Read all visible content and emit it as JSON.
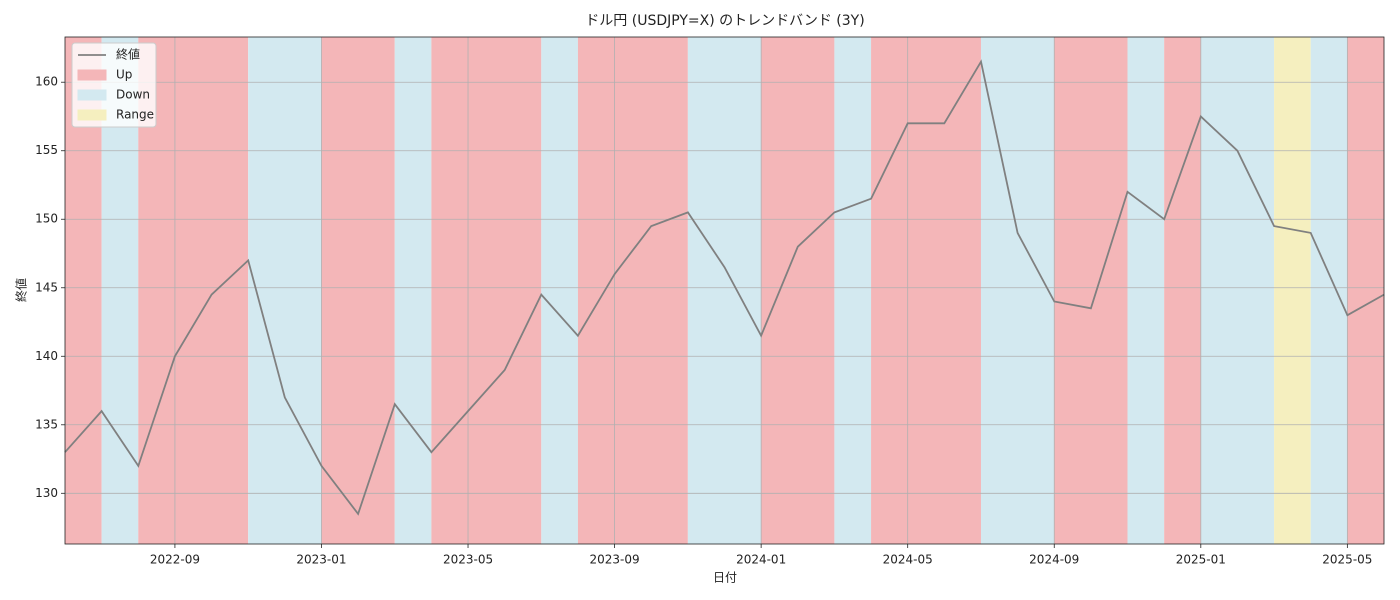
{
  "chart_data": {
    "type": "line",
    "title": "ドル円 (USDJPY=X) のトレンドバンド (3Y)",
    "x_label": "日付",
    "y_label": "終値",
    "x": [
      "2022-06",
      "2022-07",
      "2022-08",
      "2022-09",
      "2022-10",
      "2022-11",
      "2022-12",
      "2023-01",
      "2023-02",
      "2023-03",
      "2023-04",
      "2023-05",
      "2023-06",
      "2023-07",
      "2023-08",
      "2023-09",
      "2023-10",
      "2023-11",
      "2023-12",
      "2024-01",
      "2024-02",
      "2024-03",
      "2024-04",
      "2024-05",
      "2024-06",
      "2024-07",
      "2024-08",
      "2024-09",
      "2024-10",
      "2024-11",
      "2024-12",
      "2025-01",
      "2025-02",
      "2025-03",
      "2025-04",
      "2025-05",
      "2025-06"
    ],
    "series": [
      {
        "name": "終値",
        "color": "#808080",
        "values": [
          133,
          136,
          132,
          140,
          144.5,
          147,
          137,
          132,
          128.5,
          136.5,
          133,
          136,
          139,
          144.5,
          141.5,
          146,
          149.5,
          150.5,
          146.5,
          141.5,
          148,
          150.5,
          151.5,
          157,
          157,
          161.5,
          149,
          144,
          143.5,
          152,
          150,
          157.5,
          155,
          149.5,
          149,
          143,
          144.5
        ]
      }
    ],
    "band_types": [
      {
        "name": "Up",
        "color": "#f4b6b8"
      },
      {
        "name": "Down",
        "color": "#d3e9f0"
      },
      {
        "name": "Range",
        "color": "#f5efbf"
      }
    ],
    "bands": [
      {
        "start": "2022-06",
        "end": "2022-07",
        "trend": "Up"
      },
      {
        "start": "2022-07",
        "end": "2022-08",
        "trend": "Down"
      },
      {
        "start": "2022-08",
        "end": "2022-11",
        "trend": "Up"
      },
      {
        "start": "2022-11",
        "end": "2023-01",
        "trend": "Down"
      },
      {
        "start": "2023-01",
        "end": "2023-03",
        "trend": "Up"
      },
      {
        "start": "2023-03",
        "end": "2023-04",
        "trend": "Down"
      },
      {
        "start": "2023-04",
        "end": "2023-07",
        "trend": "Up"
      },
      {
        "start": "2023-07",
        "end": "2023-08",
        "trend": "Down"
      },
      {
        "start": "2023-08",
        "end": "2023-11",
        "trend": "Up"
      },
      {
        "start": "2023-11",
        "end": "2024-01",
        "trend": "Down"
      },
      {
        "start": "2024-01",
        "end": "2024-03",
        "trend": "Up"
      },
      {
        "start": "2024-03",
        "end": "2024-04",
        "trend": "Down"
      },
      {
        "start": "2024-04",
        "end": "2024-07",
        "trend": "Up"
      },
      {
        "start": "2024-07",
        "end": "2024-09",
        "trend": "Down"
      },
      {
        "start": "2024-09",
        "end": "2024-11",
        "trend": "Up"
      },
      {
        "start": "2024-11",
        "end": "2024-12",
        "trend": "Down"
      },
      {
        "start": "2024-12",
        "end": "2025-01",
        "trend": "Up"
      },
      {
        "start": "2025-01",
        "end": "2025-03",
        "trend": "Down"
      },
      {
        "start": "2025-03",
        "end": "2025-04",
        "trend": "Range"
      },
      {
        "start": "2025-04",
        "end": "2025-05",
        "trend": "Down"
      },
      {
        "start": "2025-05",
        "end": "2025-06",
        "trend": "Up"
      }
    ],
    "xlim": [
      "2022-06",
      "2025-06"
    ],
    "xticks": [
      "2022-09",
      "2023-01",
      "2023-05",
      "2023-09",
      "2024-01",
      "2024-05",
      "2024-09",
      "2025-01",
      "2025-05"
    ],
    "ylim": [
      126.3,
      163.3
    ],
    "yticks": [
      130,
      135,
      140,
      145,
      150,
      155,
      160
    ],
    "grid": true,
    "legend": "upper left"
  }
}
